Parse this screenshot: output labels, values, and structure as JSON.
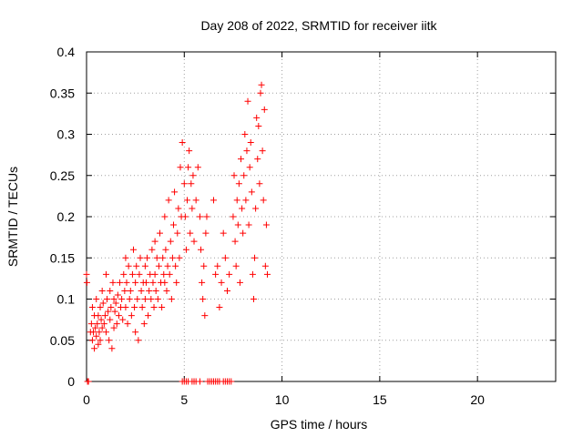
{
  "chart_data": {
    "type": "scatter",
    "title": "Day 208 of 2022, SRMTID for receiver iitk",
    "xlabel": "GPS time / hours",
    "ylabel": "SRMTID / TECUs",
    "xlim": [
      0,
      24
    ],
    "ylim": [
      0,
      0.4
    ],
    "xticks": [
      0,
      5,
      10,
      15,
      20
    ],
    "xtick_labels": [
      "0",
      "5",
      "10",
      "15",
      "20"
    ],
    "yticks": [
      0,
      0.05,
      0.1,
      0.15,
      0.2,
      0.25,
      0.3,
      0.35,
      0.4
    ],
    "ytick_labels": [
      "0",
      "0.05",
      "0.1",
      "0.15",
      "0.2",
      "0.25",
      "0.3",
      "0.35",
      "0.4"
    ],
    "grid": true,
    "marker": "+",
    "color": "#ff0000",
    "series": [
      {
        "name": "SRMTID",
        "points": [
          [
            0.0,
            0.13
          ],
          [
            0.02,
            0.12
          ],
          [
            0.05,
            0.0
          ],
          [
            0.1,
            0.0
          ],
          [
            0.2,
            0.06
          ],
          [
            0.25,
            0.07
          ],
          [
            0.3,
            0.05
          ],
          [
            0.3,
            0.09
          ],
          [
            0.35,
            0.06
          ],
          [
            0.4,
            0.04
          ],
          [
            0.4,
            0.08
          ],
          [
            0.45,
            0.065
          ],
          [
            0.5,
            0.055
          ],
          [
            0.5,
            0.1
          ],
          [
            0.55,
            0.07
          ],
          [
            0.6,
            0.045
          ],
          [
            0.6,
            0.08
          ],
          [
            0.65,
            0.06
          ],
          [
            0.7,
            0.09
          ],
          [
            0.7,
            0.05
          ],
          [
            0.75,
            0.075
          ],
          [
            0.8,
            0.065
          ],
          [
            0.8,
            0.11
          ],
          [
            0.85,
            0.095
          ],
          [
            0.9,
            0.07
          ],
          [
            0.95,
            0.08
          ],
          [
            1.0,
            0.06
          ],
          [
            1.0,
            0.13
          ],
          [
            1.05,
            0.1
          ],
          [
            1.1,
            0.085
          ],
          [
            1.15,
            0.05
          ],
          [
            1.2,
            0.11
          ],
          [
            1.2,
            0.075
          ],
          [
            1.25,
            0.09
          ],
          [
            1.3,
            0.04
          ],
          [
            1.35,
            0.12
          ],
          [
            1.4,
            0.1
          ],
          [
            1.4,
            0.065
          ],
          [
            1.45,
            0.085
          ],
          [
            1.5,
            0.095
          ],
          [
            1.55,
            0.07
          ],
          [
            1.6,
            0.105
          ],
          [
            1.65,
            0.08
          ],
          [
            1.7,
            0.12
          ],
          [
            1.75,
            0.09
          ],
          [
            1.8,
            0.1
          ],
          [
            1.85,
            0.075
          ],
          [
            1.9,
            0.13
          ],
          [
            1.95,
            0.11
          ],
          [
            2.0,
            0.09
          ],
          [
            2.0,
            0.15
          ],
          [
            2.05,
            0.12
          ],
          [
            2.1,
            0.07
          ],
          [
            2.15,
            0.14
          ],
          [
            2.2,
            0.1
          ],
          [
            2.25,
            0.11
          ],
          [
            2.3,
            0.08
          ],
          [
            2.35,
            0.13
          ],
          [
            2.4,
            0.16
          ],
          [
            2.45,
            0.09
          ],
          [
            2.5,
            0.06
          ],
          [
            2.5,
            0.12
          ],
          [
            2.55,
            0.14
          ],
          [
            2.6,
            0.1
          ],
          [
            2.65,
            0.05
          ],
          [
            2.7,
            0.13
          ],
          [
            2.75,
            0.15
          ],
          [
            2.8,
            0.11
          ],
          [
            2.85,
            0.09
          ],
          [
            2.9,
            0.12
          ],
          [
            2.95,
            0.07
          ],
          [
            3.0,
            0.1
          ],
          [
            3.0,
            0.14
          ],
          [
            3.05,
            0.12
          ],
          [
            3.1,
            0.15
          ],
          [
            3.15,
            0.08
          ],
          [
            3.2,
            0.11
          ],
          [
            3.25,
            0.13
          ],
          [
            3.3,
            0.1
          ],
          [
            3.35,
            0.16
          ],
          [
            3.4,
            0.12
          ],
          [
            3.45,
            0.09
          ],
          [
            3.5,
            0.13
          ],
          [
            3.5,
            0.17
          ],
          [
            3.55,
            0.11
          ],
          [
            3.6,
            0.15
          ],
          [
            3.65,
            0.1
          ],
          [
            3.7,
            0.14
          ],
          [
            3.75,
            0.18
          ],
          [
            3.8,
            0.12
          ],
          [
            3.85,
            0.09
          ],
          [
            3.9,
            0.15
          ],
          [
            3.95,
            0.13
          ],
          [
            4.0,
            0.2
          ],
          [
            4.0,
            0.12
          ],
          [
            4.05,
            0.16
          ],
          [
            4.1,
            0.11
          ],
          [
            4.15,
            0.14
          ],
          [
            4.2,
            0.22
          ],
          [
            4.25,
            0.13
          ],
          [
            4.3,
            0.17
          ],
          [
            4.35,
            0.1
          ],
          [
            4.4,
            0.15
          ],
          [
            4.45,
            0.19
          ],
          [
            4.5,
            0.23
          ],
          [
            4.55,
            0.14
          ],
          [
            4.6,
            0.12
          ],
          [
            4.65,
            0.18
          ],
          [
            4.7,
            0.21
          ],
          [
            4.75,
            0.15
          ],
          [
            4.8,
            0.26
          ],
          [
            4.85,
            0.2
          ],
          [
            4.9,
            0.29
          ],
          [
            4.9,
            0.0
          ],
          [
            5.0,
            0.0
          ],
          [
            5.1,
            0.0
          ],
          [
            5.2,
            0.0
          ],
          [
            5.4,
            0.0
          ],
          [
            5.5,
            0.0
          ],
          [
            5.6,
            0.0
          ],
          [
            5.8,
            0.0
          ],
          [
            6.2,
            0.0
          ],
          [
            6.3,
            0.0
          ],
          [
            6.4,
            0.0
          ],
          [
            6.5,
            0.0
          ],
          [
            6.6,
            0.0
          ],
          [
            6.7,
            0.0
          ],
          [
            6.8,
            0.0
          ],
          [
            7.0,
            0.0
          ],
          [
            7.1,
            0.0
          ],
          [
            7.2,
            0.0
          ],
          [
            7.3,
            0.0
          ],
          [
            7.4,
            0.0
          ],
          [
            5.0,
            0.24
          ],
          [
            5.05,
            0.2
          ],
          [
            5.1,
            0.16
          ],
          [
            5.15,
            0.22
          ],
          [
            5.2,
            0.26
          ],
          [
            5.25,
            0.28
          ],
          [
            5.3,
            0.18
          ],
          [
            5.35,
            0.24
          ],
          [
            5.4,
            0.21
          ],
          [
            5.45,
            0.25
          ],
          [
            5.5,
            0.17
          ],
          [
            5.6,
            0.22
          ],
          [
            5.7,
            0.26
          ],
          [
            5.8,
            0.2
          ],
          [
            5.85,
            0.16
          ],
          [
            5.9,
            0.12
          ],
          [
            5.95,
            0.1
          ],
          [
            6.0,
            0.14
          ],
          [
            6.05,
            0.08
          ],
          [
            6.1,
            0.18
          ],
          [
            6.15,
            0.2
          ],
          [
            6.5,
            0.22
          ],
          [
            6.6,
            0.13
          ],
          [
            6.7,
            0.14
          ],
          [
            6.8,
            0.09
          ],
          [
            6.9,
            0.12
          ],
          [
            7.0,
            0.18
          ],
          [
            7.1,
            0.15
          ],
          [
            7.2,
            0.11
          ],
          [
            7.3,
            0.13
          ],
          [
            7.5,
            0.2
          ],
          [
            7.55,
            0.25
          ],
          [
            7.6,
            0.17
          ],
          [
            7.65,
            0.14
          ],
          [
            7.7,
            0.22
          ],
          [
            7.75,
            0.19
          ],
          [
            7.8,
            0.24
          ],
          [
            7.85,
            0.12
          ],
          [
            7.9,
            0.27
          ],
          [
            7.95,
            0.21
          ],
          [
            8.0,
            0.18
          ],
          [
            8.05,
            0.25
          ],
          [
            8.1,
            0.3
          ],
          [
            8.15,
            0.22
          ],
          [
            8.2,
            0.28
          ],
          [
            8.25,
            0.34
          ],
          [
            8.3,
            0.19
          ],
          [
            8.35,
            0.26
          ],
          [
            8.4,
            0.29
          ],
          [
            8.45,
            0.23
          ],
          [
            8.5,
            0.13
          ],
          [
            8.55,
            0.1
          ],
          [
            8.6,
            0.15
          ],
          [
            8.65,
            0.21
          ],
          [
            8.7,
            0.32
          ],
          [
            8.75,
            0.27
          ],
          [
            8.8,
            0.31
          ],
          [
            8.85,
            0.24
          ],
          [
            8.9,
            0.35
          ],
          [
            8.95,
            0.36
          ],
          [
            9.0,
            0.28
          ],
          [
            9.05,
            0.22
          ],
          [
            9.1,
            0.33
          ],
          [
            9.15,
            0.14
          ],
          [
            9.2,
            0.19
          ],
          [
            9.25,
            0.13
          ]
        ]
      }
    ]
  }
}
